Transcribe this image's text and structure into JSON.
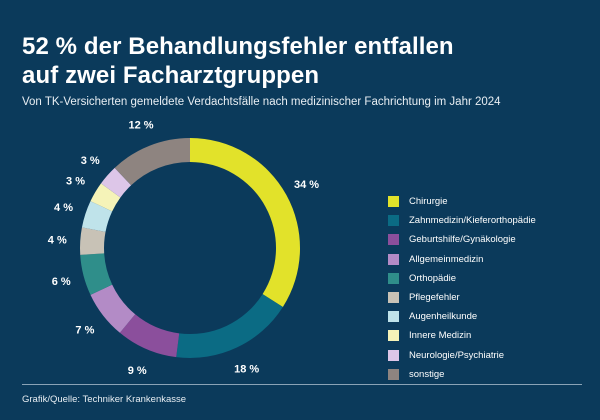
{
  "header": {
    "title_line1": "52 % der Behandlungsfehler entfallen",
    "title_line2": "auf zwei Facharztgruppen",
    "subtitle": "Von TK-Versicherten gemeldete Verdachtsfälle nach medizinischer Fachrichtung im Jahr 2024"
  },
  "footer": {
    "source": "Grafik/Quelle: Techniker Krankenkasse"
  },
  "chart_data": {
    "type": "pie",
    "variant": "donut",
    "title": "52 % der Behandlungsfehler entfallen auf zwei Facharztgruppen",
    "unit": "%",
    "legend_position": "right",
    "categories": [
      "Chirurgie",
      "Zahnmedizin/Kieferorthopädie",
      "Geburtshilfe/Gynäkologie",
      "Allgemeinmedizin",
      "Orthopädie",
      "Pflegefehler",
      "Augenheilkunde",
      "Innere Medizin",
      "Neurologie/Psychiatrie",
      "sonstige"
    ],
    "values": [
      34,
      18,
      9,
      7,
      6,
      4,
      4,
      3,
      3,
      12
    ],
    "labels": [
      "34 %",
      "18 %",
      "9 %",
      "7 %",
      "6 %",
      "4 %",
      "4 %",
      "3 %",
      "3 %",
      "12 %"
    ],
    "colors": [
      "#e2e22a",
      "#0b6b84",
      "#8b4f9c",
      "#b38bc6",
      "#2f8e8a",
      "#c8c2b6",
      "#bfe3ea",
      "#f5f3b8",
      "#ddc6e8",
      "#8e8480"
    ]
  }
}
